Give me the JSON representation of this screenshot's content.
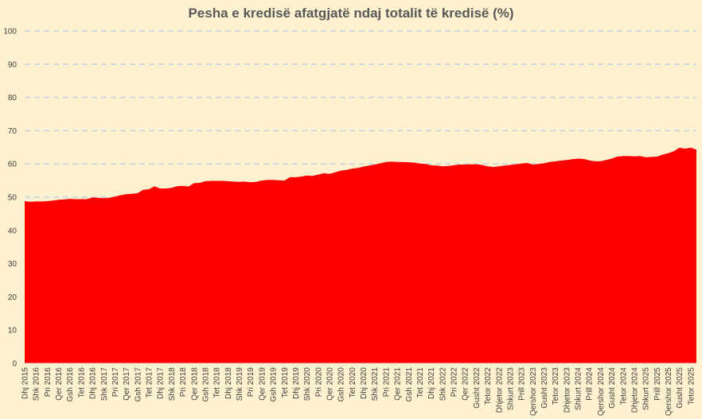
{
  "chart_data": {
    "type": "area",
    "title": "Pesha e kredisë afatgjatë ndaj totalit të kredisë (%)",
    "xlabel": "",
    "ylabel": "",
    "ylim": [
      0,
      100
    ],
    "yticks": [
      0,
      10,
      20,
      30,
      40,
      50,
      60,
      70,
      80,
      90,
      100
    ],
    "grid": true,
    "colors": {
      "area": "#ff0000",
      "background": "#fdf1cf",
      "grid": "#c5d3dd",
      "title": "#595959"
    },
    "tick_labels": [
      "Dhj 2015",
      "Shk 2016",
      "Pri 2016",
      "Qer 2016",
      "Gsh 2016",
      "Tet 2016",
      "Dhj 2016",
      "Shk 2017",
      "Pri 2017",
      "Qer 2017",
      "Gsh 2017",
      "Tet 2017",
      "Dhj 2017",
      "Shk 2018",
      "Pri 2018",
      "Qer 2018",
      "Gsh 2018",
      "Tet 2018",
      "Dhj 2018",
      "Shk 2019",
      "Pri 2019",
      "Qer 2019",
      "Gsh 2019",
      "Tet 2019",
      "Dhj 2019",
      "Shk 2020",
      "Pri 2020",
      "Qer 2020",
      "Gsh 2020",
      "Tet 2020",
      "Dhj 2020",
      "Shk 2021",
      "Pri 2021",
      "Qer 2021",
      "Gsh 2021",
      "Tet 2021",
      "Dhj 2021",
      "Shk 2022",
      "Pri 2022",
      "Qer 2022",
      "Gusht 2022",
      "Tetor 2022",
      "Dhjetor 2022",
      "Shkurt 2023",
      "Prill 2023",
      "Qershor 2023",
      "Gusht 2023",
      "Tetor 2023",
      "Dhjetor 2023",
      "Shkurt 2024",
      "Prill 2024",
      "Qershor 2024",
      "Gusht 2024",
      "Tetor 2024",
      "Dhjetor 2024",
      "Shkurt 2025",
      "Prill 2025",
      "Qershor 2025",
      "Gusht 2025",
      "Tetor 2025"
    ],
    "x_start": "2015-12",
    "x_end": "2025-11",
    "values": [
      48.8,
      48.6,
      48.7,
      48.7,
      48.8,
      49.0,
      49.2,
      49.3,
      49.5,
      49.4,
      49.4,
      49.4,
      49.9,
      49.8,
      49.7,
      49.8,
      50.2,
      50.6,
      50.9,
      51.0,
      51.2,
      52.2,
      52.4,
      53.3,
      52.6,
      52.6,
      52.8,
      53.3,
      53.4,
      53.2,
      54.2,
      54.3,
      54.8,
      54.9,
      54.9,
      54.9,
      54.8,
      54.7,
      54.6,
      54.7,
      54.5,
      54.6,
      55.0,
      55.2,
      55.2,
      55.1,
      55.0,
      56.0,
      56.0,
      56.2,
      56.5,
      56.4,
      56.8,
      57.2,
      57.0,
      57.5,
      58.0,
      58.2,
      58.6,
      58.8,
      59.2,
      59.5,
      59.8,
      60.2,
      60.6,
      60.7,
      60.6,
      60.6,
      60.5,
      60.4,
      60.1,
      60.0,
      59.6,
      59.5,
      59.3,
      59.4,
      59.6,
      59.8,
      59.8,
      59.9,
      59.9,
      59.7,
      59.3,
      59.1,
      59.3,
      59.5,
      59.7,
      59.9,
      60.1,
      60.3,
      59.8,
      60.0,
      60.2,
      60.6,
      60.8,
      61.0,
      61.2,
      61.4,
      61.6,
      61.5,
      61.1,
      60.8,
      60.8,
      61.2,
      61.6,
      62.2,
      62.4,
      62.4,
      62.3,
      62.4,
      62.0,
      62.1,
      62.2,
      62.8,
      63.2,
      63.8,
      64.9,
      64.6,
      64.9,
      64.3
    ]
  }
}
